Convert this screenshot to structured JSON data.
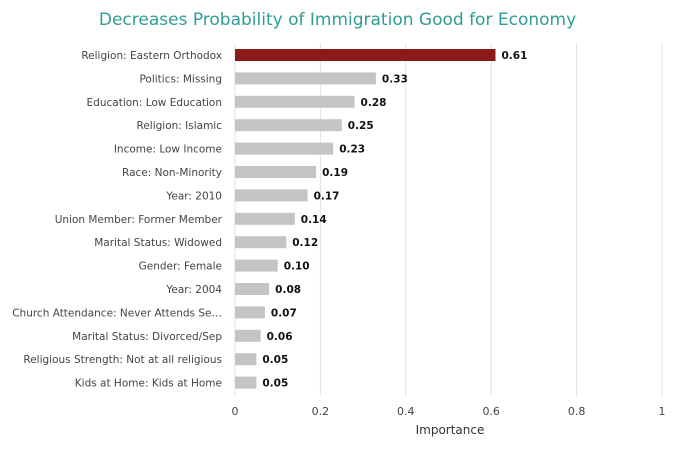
{
  "chart_data": {
    "type": "bar",
    "orientation": "horizontal",
    "title": "Decreases Probability of Immigration Good for Economy",
    "xlabel": "Importance",
    "ylabel": "",
    "xlim": [
      0,
      1
    ],
    "ticks": [
      "0",
      "0.2",
      "0.4",
      "0.6",
      "0.8",
      "1"
    ],
    "grid": true,
    "colors": {
      "highlight": "#8b1a1a",
      "default": "#c4c4c4",
      "title": "#2f9c96"
    },
    "categories": [
      "Religion: Eastern Orthodox",
      "Politics: Missing",
      "Education: Low Education",
      "Religion: Islamic",
      "Income: Low Income",
      "Race: Non-Minority",
      "Year: 2010",
      "Union Member: Former Member",
      "Marital Status: Widowed",
      "Gender: Female",
      "Year: 2004",
      "Church Attendance: Never Attends Se…",
      "Marital Status: Divorced/Sep",
      "Religious Strength: Not at all religious",
      "Kids at Home: Kids at Home"
    ],
    "values": [
      0.61,
      0.33,
      0.28,
      0.25,
      0.23,
      0.19,
      0.17,
      0.14,
      0.12,
      0.1,
      0.08,
      0.07,
      0.06,
      0.05,
      0.05
    ],
    "value_labels": [
      "0.61",
      "0.33",
      "0.28",
      "0.25",
      "0.23",
      "0.19",
      "0.17",
      "0.14",
      "0.12",
      "0.10",
      "0.08",
      "0.07",
      "0.06",
      "0.05",
      "0.05"
    ],
    "highlight_index": 0
  }
}
